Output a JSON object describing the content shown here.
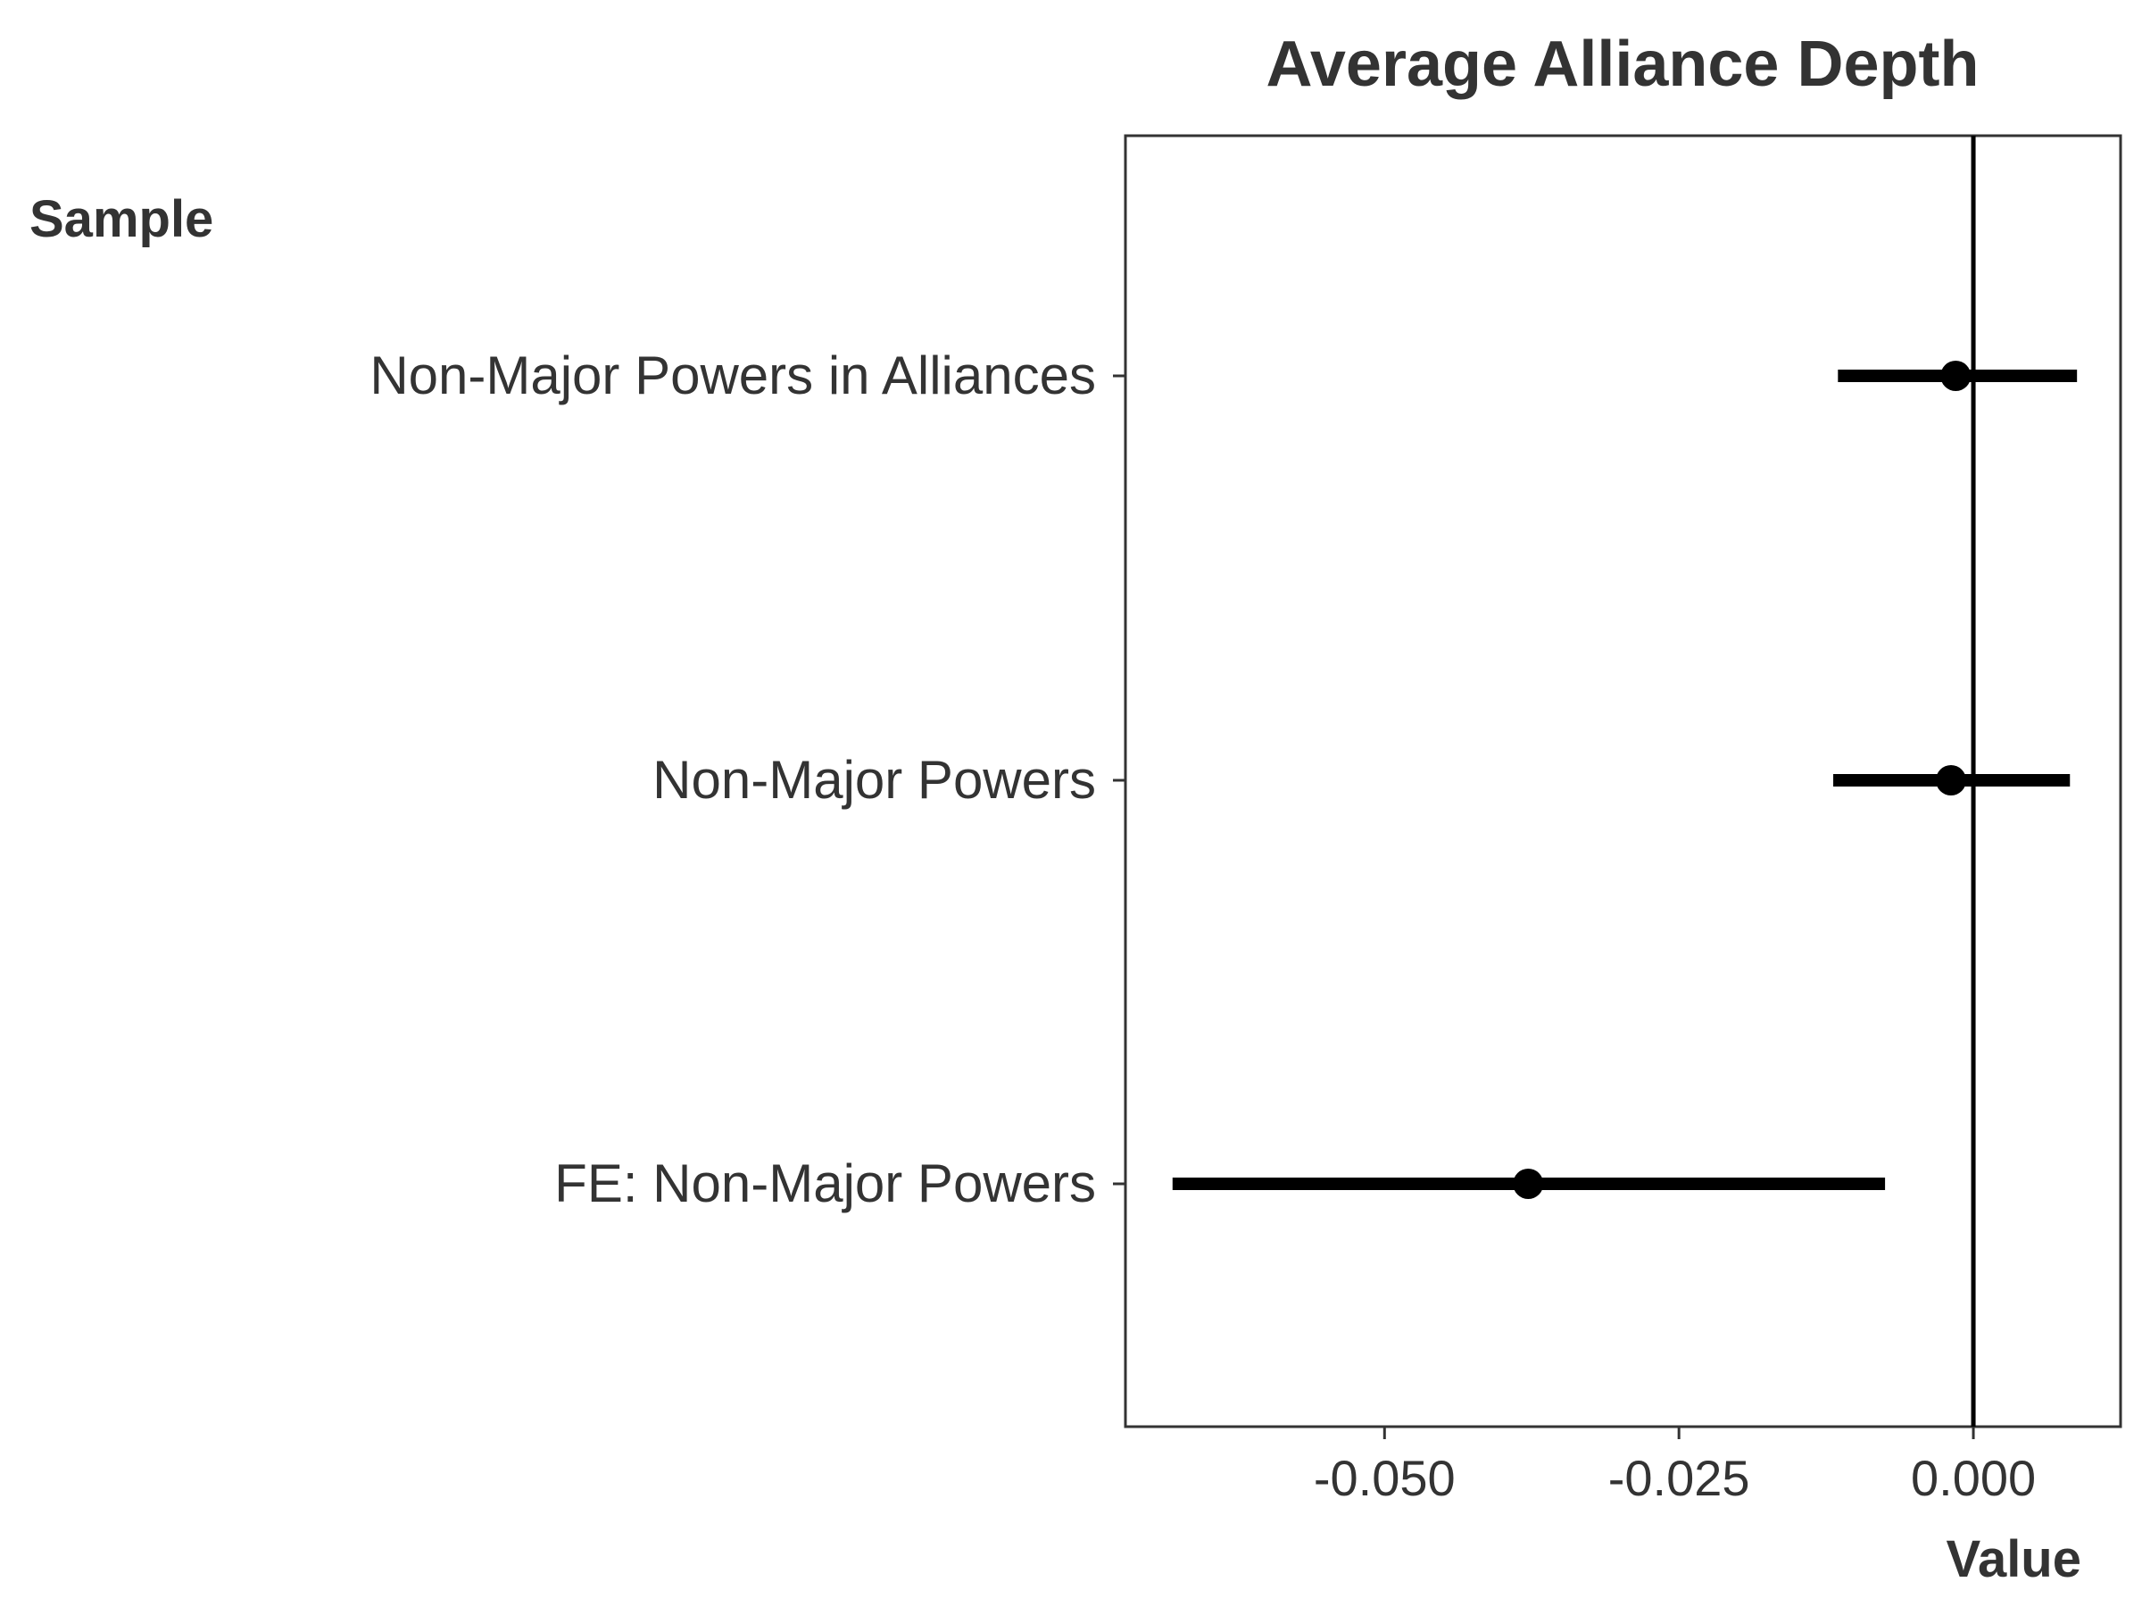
{
  "chart_data": {
    "type": "coefficient-plot",
    "title": "Average Alliance Depth",
    "y_axis_title": "Sample",
    "x_axis_title": "Value",
    "xlim": [
      -0.072,
      0.0125
    ],
    "x_ticks": [
      -0.05,
      -0.025,
      0.0
    ],
    "x_tick_labels": [
      "-0.050",
      "-0.025",
      "0.000"
    ],
    "reference_line_x": 0.0,
    "categories": [
      "Non-Major Powers in Alliances",
      "Non-Major Powers",
      "FE: Non-Major Powers"
    ],
    "series": [
      {
        "points": [
          {
            "label": "Non-Major Powers in Alliances",
            "estimate": -0.0015,
            "lower": -0.0115,
            "upper": 0.0088
          },
          {
            "label": "Non-Major Powers",
            "estimate": -0.0019,
            "lower": -0.0119,
            "upper": 0.0082
          },
          {
            "label": "FE: Non-Major Powers",
            "estimate": -0.0378,
            "lower": -0.068,
            "upper": -0.0075
          }
        ]
      }
    ],
    "grid": false,
    "legend": "none"
  }
}
